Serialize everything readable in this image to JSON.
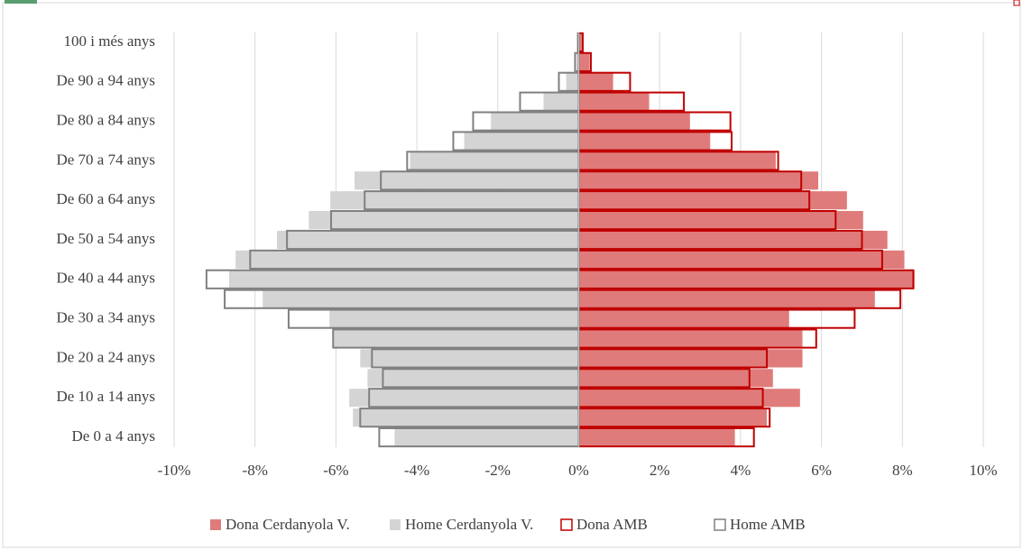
{
  "chart_data": {
    "type": "bar",
    "categories": [
      "De 0 a 4 anys",
      null,
      "De 10 a 14 anys",
      null,
      "De 20 a 24 anys",
      null,
      "De 30 a 34 anys",
      null,
      "De 40 a 44 anys",
      null,
      "De 50 a 54 anys",
      null,
      "De 60 a 64 anys",
      null,
      "De 70 a 74 anys",
      null,
      "De 80 a 84 anys",
      null,
      "De 90 a 94 anys",
      null,
      "100 i més anys"
    ],
    "series": [
      {
        "name": "Dona Cerdanyola V.",
        "color": "#e07b7b",
        "style": "filled",
        "values": [
          3.86,
          4.65,
          5.47,
          4.8,
          5.53,
          5.53,
          5.2,
          7.32,
          8.3,
          8.05,
          7.63,
          7.03,
          6.63,
          5.92,
          4.87,
          3.25,
          2.75,
          1.74,
          0.85,
          0.27,
          0.09
        ]
      },
      {
        "name": "Home Cerdanyola V.",
        "color": "#d4d4d4",
        "style": "filled",
        "values": [
          -4.55,
          -5.58,
          -5.67,
          -5.22,
          -5.4,
          -6.07,
          -6.16,
          -7.81,
          -8.64,
          -8.48,
          -7.46,
          -6.67,
          -6.14,
          -5.54,
          -4.17,
          -2.83,
          -2.17,
          -0.87,
          -0.31,
          -0.05,
          -0.01
        ]
      },
      {
        "name": "Dona AMB",
        "color": "#c00000",
        "style": "outline",
        "values": [
          4.33,
          4.72,
          4.55,
          4.22,
          4.65,
          5.87,
          6.82,
          7.95,
          8.27,
          7.5,
          7.0,
          6.35,
          5.7,
          5.5,
          4.93,
          3.78,
          3.75,
          2.6,
          1.27,
          0.3,
          0.1
        ]
      },
      {
        "name": "Home AMB",
        "color": "#808080",
        "style": "outline",
        "values": [
          -4.93,
          -5.4,
          -5.18,
          -4.84,
          -5.11,
          -6.07,
          -7.17,
          -8.75,
          -9.2,
          -8.12,
          -7.21,
          -6.12,
          -5.29,
          -4.89,
          -4.24,
          -3.1,
          -2.61,
          -1.45,
          -0.49,
          -0.09,
          -0.02
        ]
      }
    ],
    "xlim": [
      -10,
      10
    ],
    "xticks": [
      {
        "value": -10,
        "label": "-10%"
      },
      {
        "value": -8,
        "label": "-8%"
      },
      {
        "value": -6,
        "label": "-6%"
      },
      {
        "value": -4,
        "label": "-4%"
      },
      {
        "value": -2,
        "label": "-2%"
      },
      {
        "value": 0,
        "label": "0%"
      },
      {
        "value": 2,
        "label": "2%"
      },
      {
        "value": 4,
        "label": "4%"
      },
      {
        "value": 6,
        "label": "6%"
      },
      {
        "value": 8,
        "label": "8%"
      },
      {
        "value": 10,
        "label": "10%"
      }
    ],
    "grid": true
  }
}
